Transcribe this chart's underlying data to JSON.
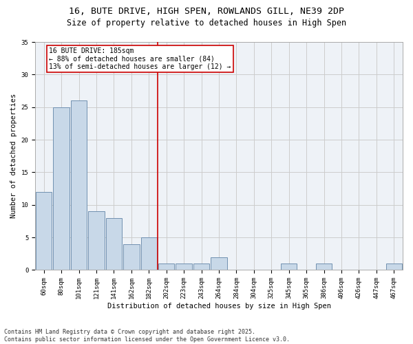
{
  "title_line1": "16, BUTE DRIVE, HIGH SPEN, ROWLANDS GILL, NE39 2DP",
  "title_line2": "Size of property relative to detached houses in High Spen",
  "xlabel": "Distribution of detached houses by size in High Spen",
  "ylabel": "Number of detached properties",
  "categories": [
    "60sqm",
    "80sqm",
    "101sqm",
    "121sqm",
    "141sqm",
    "162sqm",
    "182sqm",
    "202sqm",
    "223sqm",
    "243sqm",
    "264sqm",
    "284sqm",
    "304sqm",
    "325sqm",
    "345sqm",
    "365sqm",
    "386sqm",
    "406sqm",
    "426sqm",
    "447sqm",
    "467sqm"
  ],
  "bar_values": [
    12,
    25,
    26,
    9,
    8,
    4,
    5,
    1,
    1,
    1,
    2,
    0,
    0,
    0,
    1,
    0,
    1,
    0,
    0,
    0,
    1
  ],
  "bar_color": "#c8d8e8",
  "bar_edge_color": "#7090b0",
  "vline_x": 6.5,
  "vline_color": "#cc0000",
  "annotation_text": "16 BUTE DRIVE: 185sqm\n← 88% of detached houses are smaller (84)\n13% of semi-detached houses are larger (12) →",
  "annotation_box_color": "#cc0000",
  "ylim": [
    0,
    35
  ],
  "yticks": [
    0,
    5,
    10,
    15,
    20,
    25,
    30,
    35
  ],
  "grid_color": "#cccccc",
  "bg_color": "#eef2f7",
  "footer_line1": "Contains HM Land Registry data © Crown copyright and database right 2025.",
  "footer_line2": "Contains public sector information licensed under the Open Government Licence v3.0.",
  "title_fontsize": 9.5,
  "subtitle_fontsize": 8.5,
  "annotation_fontsize": 7,
  "footer_fontsize": 6,
  "axis_label_fontsize": 7.5,
  "tick_fontsize": 6.5
}
